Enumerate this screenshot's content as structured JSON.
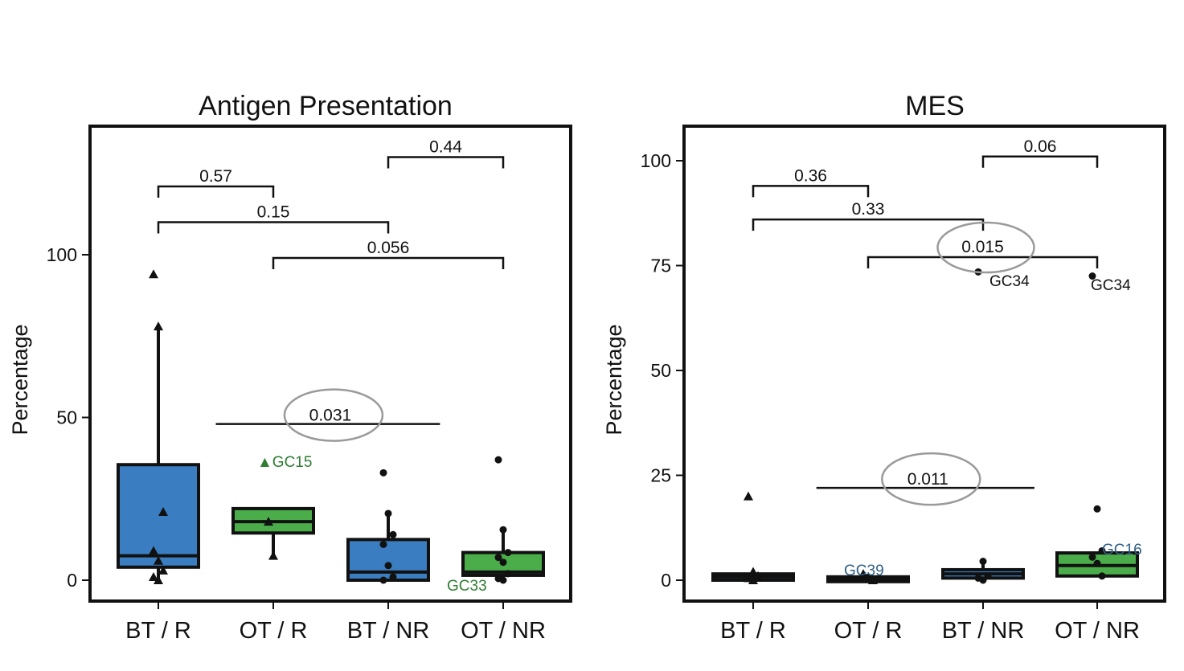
{
  "colors": {
    "blue": "#3a7dc0",
    "green": "#4aad4a",
    "frame": "#111111",
    "ellipse": "#9a9a9a",
    "annot_green": "#2e7d32",
    "annot_blue": "#2f5f85"
  },
  "chart_data": [
    {
      "type": "box",
      "title": "Antigen Presentation",
      "ylabel": "Percentage",
      "ylim": [
        -6,
        140
      ],
      "yticks": [
        "0",
        "50",
        "100"
      ],
      "categories": [
        "BT / R",
        "OT / R",
        "BT / NR",
        "OT / NR"
      ],
      "boxes": [
        {
          "color": "blue",
          "min": 0,
          "q1": 4,
          "median": 7.5,
          "q3": 35.5,
          "max": 78,
          "points": [
            94,
            78,
            21,
            9,
            6,
            3,
            1,
            0
          ],
          "marker": "triangle"
        },
        {
          "color": "green",
          "min": 7.5,
          "q1": 14.5,
          "median": 18,
          "q3": 22,
          "max": 22,
          "points": [
            18,
            7.5
          ],
          "marker": "triangle"
        },
        {
          "color": "blue",
          "min": 0,
          "q1": 0,
          "median": 2.5,
          "q3": 12.5,
          "max": 20,
          "points": [
            33,
            20.5,
            14,
            11,
            4.5,
            1,
            0
          ],
          "marker": "dot"
        },
        {
          "color": "green",
          "min": 0,
          "q1": 1.5,
          "median": 2.5,
          "q3": 8.5,
          "max": 15.5,
          "points": [
            37,
            15.5,
            8.5,
            7,
            5.5,
            2,
            0.5,
            0
          ],
          "marker": "dot"
        }
      ],
      "brackets": [
        {
          "from": 0,
          "to": 1,
          "y": 121,
          "label": "0.57"
        },
        {
          "from": 0,
          "to": 2,
          "y": 110,
          "label": "0.15"
        },
        {
          "from": 1,
          "to": 3,
          "y": 99,
          "label": "0.056"
        },
        {
          "from": 2,
          "to": 3,
          "y": 130,
          "label": "0.44"
        }
      ],
      "line": {
        "from": 0.5,
        "to": 2.45,
        "y": 48,
        "label": "0.031",
        "circled": true
      },
      "annotations": [
        {
          "text": "▲GC15",
          "cat": 1,
          "y": 36.5,
          "color": "annot_green",
          "dx": -20
        },
        {
          "text": "GC33",
          "cat": 3,
          "y": -1.5,
          "color": "annot_green",
          "dx": -70
        }
      ]
    },
    {
      "type": "box",
      "title": "MES",
      "ylabel": "Percentage",
      "ylim": [
        -5,
        108
      ],
      "yticks": [
        "0",
        "25",
        "50",
        "75",
        "100"
      ],
      "categories": [
        "BT / R",
        "OT / R",
        "BT / NR",
        "OT / NR"
      ],
      "boxes": [
        {
          "color": "blue",
          "min": 0,
          "q1": 0,
          "median": 0.8,
          "q3": 1.5,
          "max": 2,
          "points": [
            20,
            2,
            1,
            0.5,
            0
          ],
          "marker": "triangle"
        },
        {
          "color": "green",
          "min": 0,
          "q1": 0,
          "median": 0.3,
          "q3": 0.8,
          "max": 1.5,
          "points": [
            1.5,
            0.5,
            0
          ],
          "marker": "triangle"
        },
        {
          "color": "blue",
          "min": 0,
          "q1": 0.5,
          "median": 1.5,
          "q3": 2.5,
          "max": 4.5,
          "points": [
            73.5,
            4.5,
            1,
            0.5,
            0
          ],
          "marker": "dot"
        },
        {
          "color": "green",
          "min": 1,
          "q1": 1,
          "median": 3.5,
          "q3": 6.5,
          "max": 6.5,
          "points": [
            72.5,
            17,
            7,
            5.5,
            4,
            1
          ],
          "marker": "dot"
        }
      ],
      "brackets": [
        {
          "from": 0,
          "to": 1,
          "y": 94,
          "label": "0.36"
        },
        {
          "from": 0,
          "to": 2,
          "y": 86,
          "label": "0.33"
        },
        {
          "from": 1,
          "to": 3,
          "y": 77,
          "label": "0.015",
          "circled": true
        },
        {
          "from": 2,
          "to": 3,
          "y": 101,
          "label": "0.06"
        }
      ],
      "line": {
        "from": 0.55,
        "to": 2.45,
        "y": 22,
        "label": "0.011",
        "circled": true
      },
      "annotations": [
        {
          "text": "GC34",
          "cat": 2,
          "y": 71.5,
          "color": "frame",
          "dx": 8
        },
        {
          "text": "GC34",
          "cat": 3,
          "y": 70.5,
          "color": "frame",
          "dx": -8
        },
        {
          "text": "GC39",
          "cat": 1,
          "y": 2.5,
          "color": "annot_blue",
          "dx": -30
        },
        {
          "text": "GC16",
          "cat": 3,
          "y": 7.5,
          "color": "annot_blue",
          "dx": 6
        }
      ]
    }
  ]
}
